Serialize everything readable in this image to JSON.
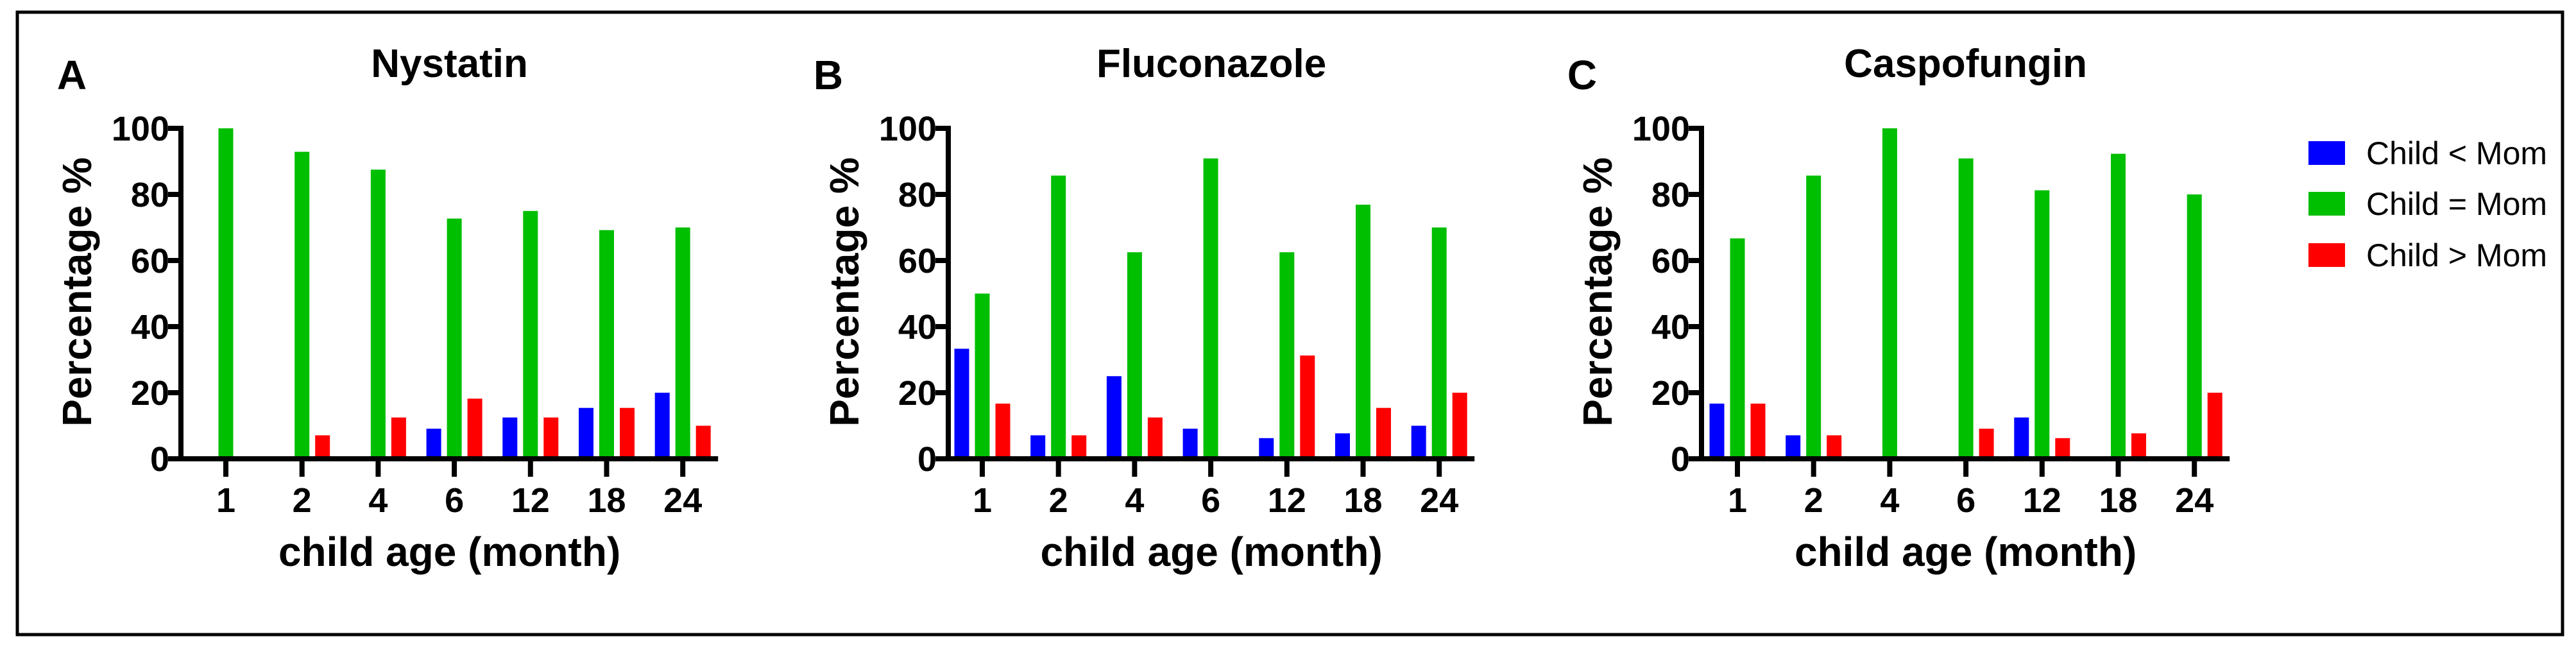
{
  "colors": {
    "child_lt_mom": "#0000FF",
    "child_eq_mom": "#00BE00",
    "child_gt_mom": "#FF0000",
    "axis": "#000000"
  },
  "legend": {
    "position": "right",
    "items": [
      {
        "label": "Child < Mom",
        "color": "#0000FF"
      },
      {
        "label": "Child = Mom",
        "color": "#00BE00"
      },
      {
        "label": "Child > Mom",
        "color": "#FF0000"
      }
    ]
  },
  "chart_data": [
    {
      "type": "bar",
      "panel": "A",
      "title": "Nystatin",
      "xlabel": "child age (month)",
      "ylabel": "Percentage %",
      "ylim": [
        0,
        100
      ],
      "yticks": [
        "0",
        "20",
        "40",
        "60",
        "80",
        "100"
      ],
      "categories": [
        "1",
        "2",
        "4",
        "6",
        "12",
        "18",
        "24"
      ],
      "series": [
        {
          "name": "Child < Mom",
          "values": [
            0,
            0,
            0,
            9.1,
            12.5,
            15.4,
            20
          ]
        },
        {
          "name": "Child = Mom",
          "values": [
            100,
            92.9,
            87.5,
            72.7,
            75,
            69.2,
            70
          ]
        },
        {
          "name": "Child > Mom",
          "values": [
            0,
            7.1,
            12.5,
            18.2,
            12.5,
            15.4,
            10
          ]
        }
      ]
    },
    {
      "type": "bar",
      "panel": "B",
      "title": "Fluconazole",
      "xlabel": "child age (month)",
      "ylabel": "Percentage %",
      "ylim": [
        0,
        100
      ],
      "yticks": [
        "0",
        "20",
        "40",
        "60",
        "80",
        "100"
      ],
      "categories": [
        "1",
        "2",
        "4",
        "6",
        "12",
        "18",
        "24"
      ],
      "series": [
        {
          "name": "Child < Mom",
          "values": [
            33.3,
            7.1,
            25,
            9.1,
            6.25,
            7.7,
            10
          ]
        },
        {
          "name": "Child = Mom",
          "values": [
            50,
            85.7,
            62.5,
            90.9,
            62.5,
            76.9,
            70
          ]
        },
        {
          "name": "Child > Mom",
          "values": [
            16.7,
            7.1,
            12.5,
            0,
            31.25,
            15.4,
            20
          ]
        }
      ]
    },
    {
      "type": "bar",
      "panel": "C",
      "title": "Caspofungin",
      "xlabel": "child age (month)",
      "ylabel": "Percentage %",
      "ylim": [
        0,
        100
      ],
      "yticks": [
        "0",
        "20",
        "40",
        "60",
        "80",
        "100"
      ],
      "categories": [
        "1",
        "2",
        "4",
        "6",
        "12",
        "18",
        "24"
      ],
      "series": [
        {
          "name": "Child < Mom",
          "values": [
            16.7,
            7.1,
            0,
            0,
            12.5,
            0,
            0
          ]
        },
        {
          "name": "Child = Mom",
          "values": [
            66.7,
            85.7,
            100,
            90.9,
            81.25,
            92.3,
            80
          ]
        },
        {
          "name": "Child > Mom",
          "values": [
            16.7,
            7.1,
            0,
            9.1,
            6.25,
            7.7,
            20
          ]
        }
      ]
    }
  ]
}
